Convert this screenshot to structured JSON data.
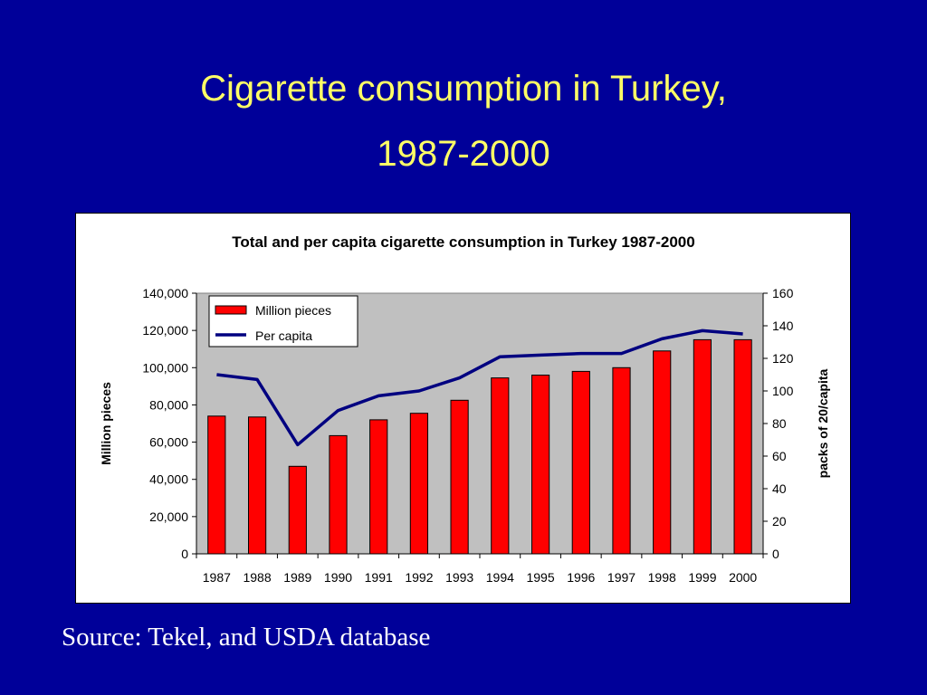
{
  "slide": {
    "title_line1": "Cigarette consumption in Turkey,",
    "title_line2": "1987-2000",
    "source": "Source: Tekel, and USDA database"
  },
  "colors": {
    "background": "#000099",
    "title": "#ffff66",
    "bars": "#ff0000",
    "line": "#000080",
    "plot_area": "#c0c0c0"
  },
  "chart_data": {
    "type": "bar",
    "title": "Total and per capita cigarette consumption in Turkey 1987-2000",
    "categories": [
      "1987",
      "1988",
      "1989",
      "1990",
      "1991",
      "1992",
      "1993",
      "1994",
      "1995",
      "1996",
      "1997",
      "1998",
      "1999",
      "2000"
    ],
    "series": [
      {
        "name": "Million pieces",
        "type": "bar",
        "axis": "left",
        "values": [
          74000,
          73500,
          47000,
          63500,
          72000,
          75500,
          82500,
          94500,
          96000,
          98000,
          100000,
          109000,
          115000,
          115000
        ]
      },
      {
        "name": "Per capita",
        "type": "line",
        "axis": "right",
        "values": [
          110,
          107,
          67,
          88,
          97,
          100,
          108,
          121,
          122,
          123,
          123,
          132,
          137,
          135
        ]
      }
    ],
    "ylabel": "Million pieces",
    "y2label": "packs of 20/capita",
    "ylim": [
      0,
      140000
    ],
    "y2lim": [
      0,
      160
    ],
    "yticks": [
      "0",
      "20,000",
      "40,000",
      "60,000",
      "80,000",
      "100,000",
      "120,000",
      "140,000"
    ],
    "y2ticks": [
      "0",
      "20",
      "40",
      "60",
      "80",
      "100",
      "120",
      "140",
      "160"
    ],
    "legend": "top-left",
    "grid": false
  }
}
